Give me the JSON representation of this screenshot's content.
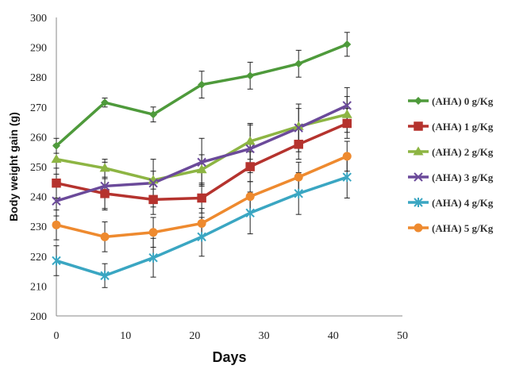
{
  "chart_data": {
    "type": "line",
    "title": "",
    "xlabel": "Days",
    "ylabel": "Body  weight gain  (g)",
    "xlim": [
      0,
      50
    ],
    "ylim": [
      200,
      300
    ],
    "xticks": [
      0,
      10,
      20,
      30,
      40,
      50
    ],
    "yticks": [
      200,
      210,
      220,
      230,
      240,
      250,
      260,
      270,
      280,
      290,
      300
    ],
    "grid": false,
    "legend_position": "right",
    "x": [
      0,
      7,
      14,
      21,
      28,
      35,
      42
    ],
    "series": [
      {
        "name": "(AHA) 0 g/Kg",
        "color": "#4E9A3B",
        "marker": "diamond",
        "values": [
          257,
          271.5,
          267.5,
          277.5,
          280.5,
          284.5,
          291
        ],
        "errors": [
          2.5,
          1.5,
          2.5,
          4.5,
          4.5,
          4.5,
          4
        ]
      },
      {
        "name": "(AHA) 1 g/Kg",
        "color": "#B5332E",
        "marker": "square",
        "values": [
          244.5,
          241,
          239,
          239.5,
          250,
          257.5,
          264.5
        ],
        "errors": [
          5,
          5,
          5,
          5,
          5,
          5,
          5
        ]
      },
      {
        "name": "(AHA) 2 g/Kg",
        "color": "#8DB543",
        "marker": "triangle",
        "values": [
          252.5,
          249.5,
          245.5,
          249,
          258.5,
          263.5,
          267.5
        ],
        "errors": [
          5,
          3,
          3,
          5,
          6,
          6,
          6
        ]
      },
      {
        "name": "(AHA) 3 g/Kg",
        "color": "#6B4A9A",
        "marker": "x",
        "values": [
          238.5,
          243.5,
          244.5,
          251.5,
          256,
          263,
          270.5
        ],
        "errors": [
          5,
          8,
          8,
          8,
          8,
          8,
          6
        ]
      },
      {
        "name": "(AHA) 4 g/Kg",
        "color": "#3AA6C2",
        "marker": "asterisk",
        "values": [
          218.5,
          213.5,
          219.5,
          226.5,
          234.5,
          241,
          246.5
        ],
        "errors": [
          5,
          4,
          6.5,
          6.5,
          7,
          7,
          7
        ]
      },
      {
        "name": "(AHA) 5 g/Kg",
        "color": "#EE8A2F",
        "marker": "circle",
        "values": [
          230.5,
          226.5,
          228,
          231,
          240,
          246.5,
          253.5
        ],
        "errors": [
          5,
          5,
          5,
          5,
          5,
          5,
          5
        ]
      }
    ]
  }
}
